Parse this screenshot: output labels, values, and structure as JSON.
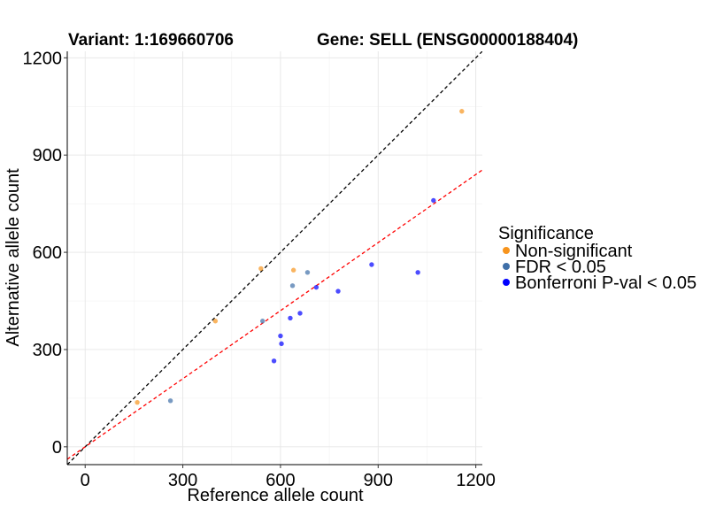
{
  "chart_data": {
    "type": "scatter",
    "title_left": "Variant: 1:169660706",
    "title_right": "Gene: SELL (ENSG00000188404)",
    "xlabel": "Reference allele count",
    "ylabel": "Alternative allele count",
    "xlim": [
      -55,
      1220
    ],
    "ylim": [
      -55,
      1220
    ],
    "x_ticks": [
      0,
      300,
      600,
      900,
      1200
    ],
    "y_ticks": [
      0,
      300,
      600,
      900,
      1200
    ],
    "grid": true,
    "legend": {
      "title": "Significance",
      "position": "right",
      "entries": [
        {
          "label": "Non-significant",
          "color": "#f7941d"
        },
        {
          "label": "FDR < 0.05",
          "color": "#3f6fa8"
        },
        {
          "label": "Bonferroni P-val < 0.05",
          "color": "#0000ff"
        }
      ]
    },
    "reference_lines": [
      {
        "name": "y = x",
        "slope": 1.0,
        "intercept": 0,
        "color": "#000000",
        "style": "dashed"
      },
      {
        "name": "fit",
        "slope": 0.7,
        "intercept": 0,
        "color": "#ff0000",
        "style": "dashed"
      }
    ],
    "series": [
      {
        "name": "Non-significant",
        "color": "#f7941d",
        "points": [
          {
            "x": 160,
            "y": 137
          },
          {
            "x": 400,
            "y": 388
          },
          {
            "x": 540,
            "y": 550
          },
          {
            "x": 640,
            "y": 545
          },
          {
            "x": 1157,
            "y": 1035
          }
        ]
      },
      {
        "name": "FDR < 0.05",
        "color": "#3f6fa8",
        "points": [
          {
            "x": 262,
            "y": 142
          },
          {
            "x": 545,
            "y": 388
          },
          {
            "x": 637,
            "y": 497
          },
          {
            "x": 683,
            "y": 538
          }
        ]
      },
      {
        "name": "Bonferroni P-val < 0.05",
        "color": "#0000ff",
        "points": [
          {
            "x": 580,
            "y": 265
          },
          {
            "x": 600,
            "y": 342
          },
          {
            "x": 603,
            "y": 318
          },
          {
            "x": 630,
            "y": 397
          },
          {
            "x": 660,
            "y": 412
          },
          {
            "x": 710,
            "y": 492
          },
          {
            "x": 777,
            "y": 480
          },
          {
            "x": 880,
            "y": 562
          },
          {
            "x": 1022,
            "y": 538
          },
          {
            "x": 1070,
            "y": 760
          }
        ]
      }
    ]
  }
}
